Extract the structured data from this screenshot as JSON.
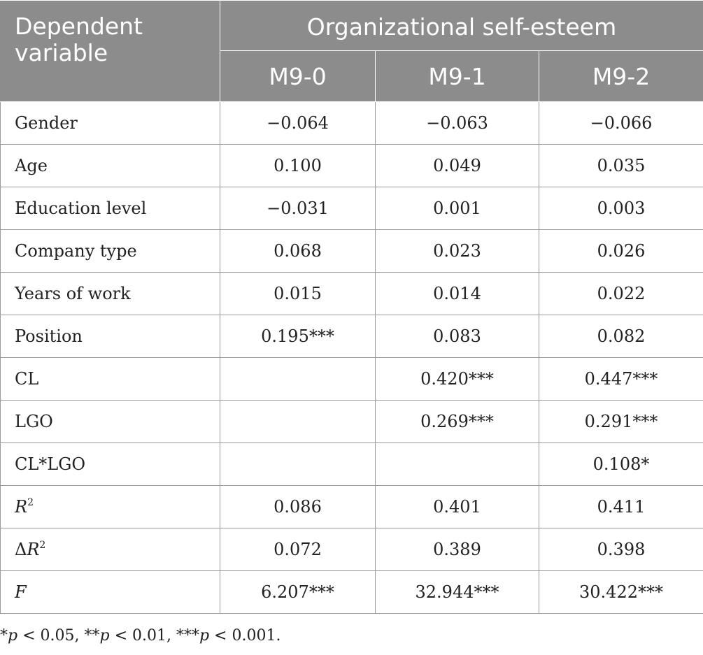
{
  "header": {
    "dependent_variable": "Dependent variable",
    "group_title": "Organizational self-esteem",
    "models": [
      "M9-0",
      "M9-1",
      "M9-2"
    ]
  },
  "rows": [
    {
      "label": "Gender",
      "values": [
        "−0.064",
        "−0.063",
        "−0.066"
      ]
    },
    {
      "label": "Age",
      "values": [
        "0.100",
        "0.049",
        "0.035"
      ]
    },
    {
      "label": "Education level",
      "values": [
        "−0.031",
        "0.001",
        "0.003"
      ]
    },
    {
      "label": "Company type",
      "values": [
        "0.068",
        "0.023",
        "0.026"
      ]
    },
    {
      "label": "Years of work",
      "values": [
        "0.015",
        "0.014",
        "0.022"
      ]
    },
    {
      "label": "Position",
      "values": [
        "0.195***",
        "0.083",
        "0.082"
      ]
    },
    {
      "label": "CL",
      "values": [
        "",
        "0.420***",
        "0.447***"
      ]
    },
    {
      "label": "LGO",
      "values": [
        "",
        "0.269***",
        "0.291***"
      ]
    },
    {
      "label": "CL*LGO",
      "values": [
        "",
        "",
        "0.108*"
      ]
    },
    {
      "label_prefix": "",
      "label_italic": "R",
      "label_sup": "2",
      "values": [
        "0.086",
        "0.401",
        "0.411"
      ]
    },
    {
      "label_prefix": "Δ",
      "label_italic": "R",
      "label_sup": "2",
      "values": [
        "0.072",
        "0.389",
        "0.398"
      ]
    },
    {
      "label_prefix": "",
      "label_italic": "F",
      "label_sup": "",
      "values": [
        "6.207***",
        "32.944***",
        "30.422***"
      ]
    }
  ],
  "footnote": {
    "p": "p",
    "part1": "*",
    "part2": " < 0.05, **",
    "part3": " < 0.01, ***",
    "part4": " < 0.001."
  }
}
